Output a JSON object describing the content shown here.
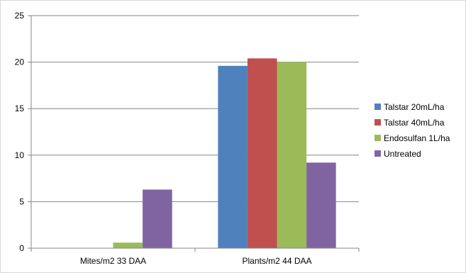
{
  "chart_data": {
    "type": "bar",
    "title": "",
    "xlabel": "",
    "ylabel": "",
    "categories": [
      "Mites/m2 33 DAA",
      "Plants/m2 44 DAA"
    ],
    "series": [
      {
        "name": "Talstar 20mL/ha",
        "values": [
          0,
          19.6
        ],
        "color": "#4f81bd"
      },
      {
        "name": "Talstar 40mL/ha",
        "values": [
          0,
          20.4
        ],
        "color": "#c0504d"
      },
      {
        "name": "Endosulfan 1L/ha",
        "values": [
          0.6,
          20.0
        ],
        "color": "#9bbb59"
      },
      {
        "name": "Untreated",
        "values": [
          6.3,
          9.2
        ],
        "color": "#8064a2"
      }
    ],
    "ylim": [
      0,
      25
    ],
    "yticks": [
      0,
      5,
      10,
      15,
      20,
      25
    ],
    "grid": true,
    "legend_position": "right"
  }
}
